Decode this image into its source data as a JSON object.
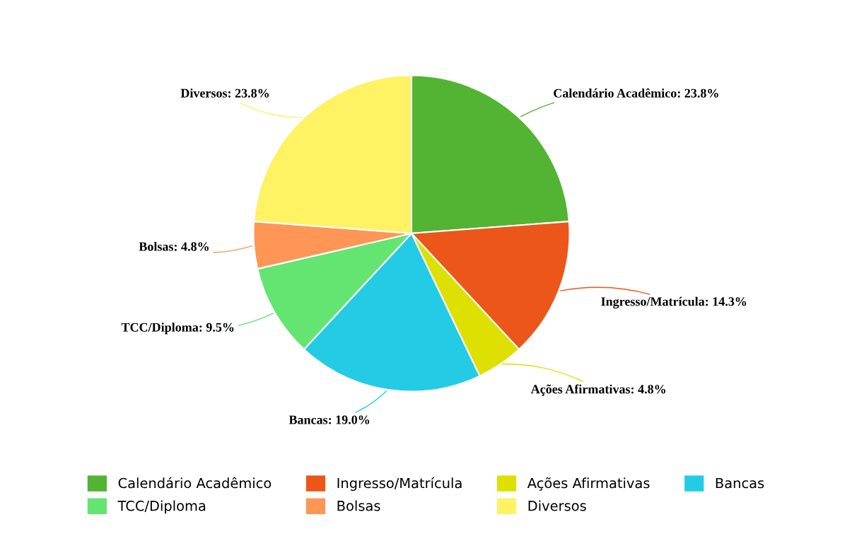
{
  "chart_data": {
    "type": "pie",
    "categories": [
      "Calendário Acadêmico",
      "Ingresso/Matrícula",
      "Ações Afirmativas",
      "Bancas",
      "TCC/Diploma",
      "Bolsas",
      "Diversos"
    ],
    "values": [
      23.8,
      14.3,
      4.8,
      19.0,
      9.5,
      4.8,
      23.8
    ],
    "colors": [
      "#52b432",
      "#ec561b",
      "#dde000",
      "#24cbe5",
      "#64e572",
      "#ff9655",
      "#fff263"
    ],
    "value_labels": [
      "Calendário Acadêmico: 23.8%",
      "Ingresso/Matrícula: 14.3%",
      "Ações Afirmativas: 4.8%",
      "Bancas: 19.0%",
      "TCC/Diploma: 9.5%",
      "Bolsas: 4.8%",
      "Diversos: 23.8%"
    ],
    "legend": "bottom"
  }
}
